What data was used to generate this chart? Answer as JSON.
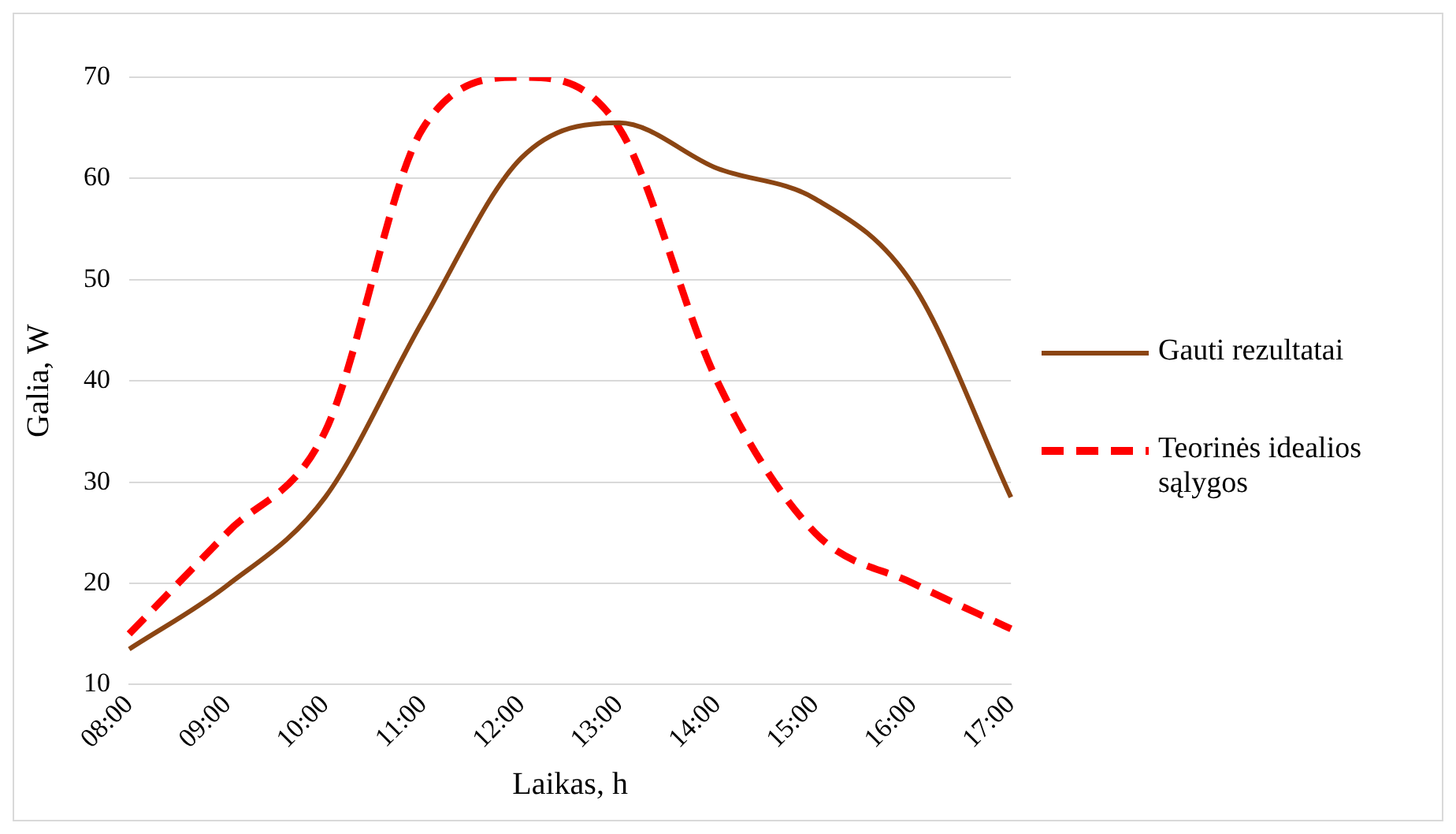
{
  "chart_data": {
    "type": "line",
    "xlabel": "Laikas, h",
    "ylabel": "Galia, W",
    "categories": [
      "08:00",
      "09:00",
      "10:00",
      "11:00",
      "12:00",
      "13:00",
      "14:00",
      "15:00",
      "16:00",
      "17:00"
    ],
    "series": [
      {
        "name": "Gauti rezultatai",
        "color": "#8b4513",
        "values": [
          13.5,
          19.8,
          28.5,
          46,
          62,
          65.5,
          61,
          58,
          49.5,
          28.5
        ],
        "line_style": "solid"
      },
      {
        "name": "Teorinės idealios sąlygos",
        "color": "#ff0000",
        "values": [
          15,
          25,
          35,
          65,
          70,
          65,
          40,
          25,
          20,
          15.5
        ],
        "line_style": "dashed"
      }
    ],
    "ylim": [
      10,
      70
    ],
    "yticks": [
      10,
      20,
      30,
      40,
      50,
      60,
      70
    ],
    "grid": "y",
    "legend": "right",
    "marker": "none"
  }
}
